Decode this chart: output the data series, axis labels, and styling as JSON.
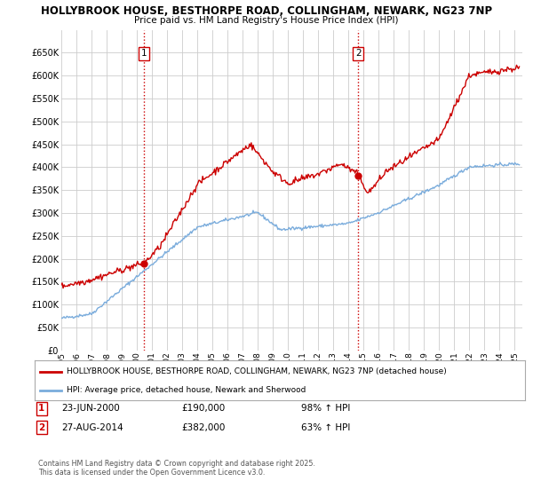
{
  "title_line1": "HOLLYBROOK HOUSE, BESTHORPE ROAD, COLLINGHAM, NEWARK, NG23 7NP",
  "title_line2": "Price paid vs. HM Land Registry's House Price Index (HPI)",
  "x_start": 1995.0,
  "x_end": 2025.5,
  "y_min": 0,
  "y_max": 700000,
  "y_ticks": [
    0,
    50000,
    100000,
    150000,
    200000,
    250000,
    300000,
    350000,
    400000,
    450000,
    500000,
    550000,
    600000,
    650000
  ],
  "x_ticks": [
    1995,
    1996,
    1997,
    1998,
    1999,
    2000,
    2001,
    2002,
    2003,
    2004,
    2005,
    2006,
    2007,
    2008,
    2009,
    2010,
    2011,
    2012,
    2013,
    2014,
    2015,
    2016,
    2017,
    2018,
    2019,
    2020,
    2021,
    2022,
    2023,
    2024,
    2025
  ],
  "marker1_x": 2000.48,
  "marker1_y": 190000,
  "marker2_x": 2014.65,
  "marker2_y": 382000,
  "line1_color": "#cc0000",
  "line2_color": "#7aacdc",
  "vline_color": "#cc0000",
  "grid_color": "#cccccc",
  "bg_color": "#ffffff",
  "legend_line1": "HOLLYBROOK HOUSE, BESTHORPE ROAD, COLLINGHAM, NEWARK, NG23 7NP (detached house)",
  "legend_line2": "HPI: Average price, detached house, Newark and Sherwood",
  "marker1_label": "1",
  "marker1_date": "23-JUN-2000",
  "marker1_price": "£190,000",
  "marker1_hpi": "98% ↑ HPI",
  "marker2_label": "2",
  "marker2_date": "27-AUG-2014",
  "marker2_price": "£382,000",
  "marker2_hpi": "63% ↑ HPI",
  "footer": "Contains HM Land Registry data © Crown copyright and database right 2025.\nThis data is licensed under the Open Government Licence v3.0."
}
